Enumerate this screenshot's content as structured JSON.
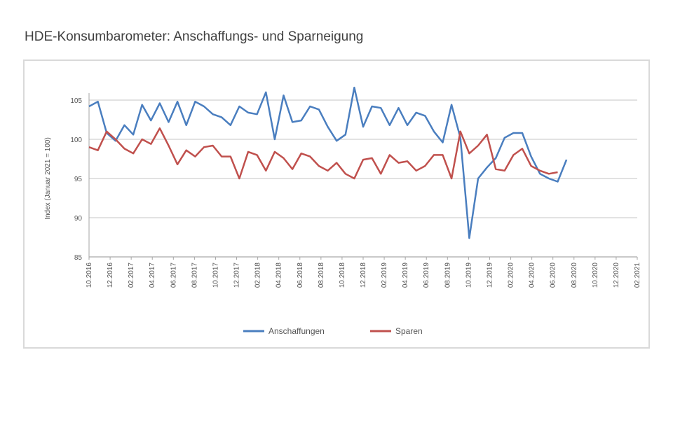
{
  "page": {
    "title": "HDE-Konsumbarometer: Anschaffungs- und Sparneigung"
  },
  "colors": {
    "series1": "#4a7ebf",
    "series2": "#c0504d",
    "grid": "#d9d9d9",
    "axis": "#a6a6a6"
  },
  "chart_data": {
    "type": "line",
    "title": "HDE-Konsumbarometer: Anschaffungs- und Sparneigung",
    "ylabel": "Index (Januar 2021 = 100)",
    "xlabel": "",
    "ylim": [
      85,
      105
    ],
    "yticks": [
      85,
      90,
      95,
      100,
      105
    ],
    "grid": true,
    "legend": "bottom",
    "xtick_labels": [
      "10.2016",
      "12.2016",
      "02.2017",
      "04.2017",
      "06.2017",
      "08.2017",
      "10.2017",
      "12.2017",
      "02.2018",
      "04.2018",
      "06.2018",
      "08.2018",
      "10.2018",
      "12.2018",
      "02.2019",
      "04.2019",
      "06.2019",
      "08.2019",
      "10.2019",
      "12.2019",
      "02.2020",
      "04.2020",
      "06.2020",
      "08.2020",
      "10.2020",
      "12.2020",
      "02.2021"
    ],
    "x": [
      0,
      1,
      2,
      3,
      4,
      5,
      6,
      7,
      8,
      9,
      10,
      11,
      12,
      13,
      14,
      15,
      16,
      17,
      18,
      19,
      20,
      21,
      22,
      23,
      24,
      25,
      26,
      27,
      28,
      29,
      30,
      31,
      32,
      33,
      34,
      35,
      36,
      37,
      38,
      39,
      40,
      41,
      42,
      43,
      44,
      45,
      46,
      47,
      48,
      49,
      50,
      51,
      52,
      53,
      54,
      55,
      56,
      57,
      58,
      59,
      60,
      61,
      62
    ],
    "series": [
      {
        "name": "Anschaffungen",
        "values": [
          104.2,
          104.8,
          100.8,
          99.8,
          101.8,
          100.6,
          104.4,
          102.4,
          104.6,
          102.2,
          104.8,
          101.8,
          104.8,
          104.2,
          103.2,
          102.8,
          101.8,
          104.2,
          103.4,
          103.2,
          106.0,
          100.0,
          105.6,
          102.2,
          102.4,
          104.2,
          103.8,
          101.6,
          99.8,
          100.6,
          106.6,
          101.6,
          104.2,
          104.0,
          101.8,
          104.0,
          101.8,
          103.4,
          103.0,
          101.0,
          99.6,
          104.4,
          100.2,
          87.4,
          95.0,
          96.4,
          97.6,
          100.2,
          100.8,
          100.8,
          97.8,
          95.6,
          95.0,
          94.6,
          97.4,
          null,
          null,
          null,
          null,
          null,
          null,
          null,
          null
        ]
      },
      {
        "name": "Sparen",
        "values": [
          99.0,
          98.6,
          101.0,
          100.0,
          98.8,
          98.2,
          100.0,
          99.4,
          101.4,
          99.2,
          96.8,
          98.6,
          97.8,
          99.0,
          99.2,
          97.8,
          97.8,
          95.0,
          98.4,
          98.0,
          96.0,
          98.4,
          97.6,
          96.2,
          98.2,
          97.8,
          96.6,
          96.0,
          97.0,
          95.6,
          95.0,
          97.4,
          97.6,
          95.6,
          98.0,
          97.0,
          97.2,
          96.0,
          96.6,
          98.0,
          98.0,
          95.0,
          101.0,
          98.2,
          99.2,
          100.6,
          96.2,
          96.0,
          98.0,
          98.8,
          96.6,
          96.0,
          95.6,
          95.8,
          null,
          null,
          null,
          null,
          null,
          null,
          null,
          null,
          null
        ]
      }
    ]
  }
}
